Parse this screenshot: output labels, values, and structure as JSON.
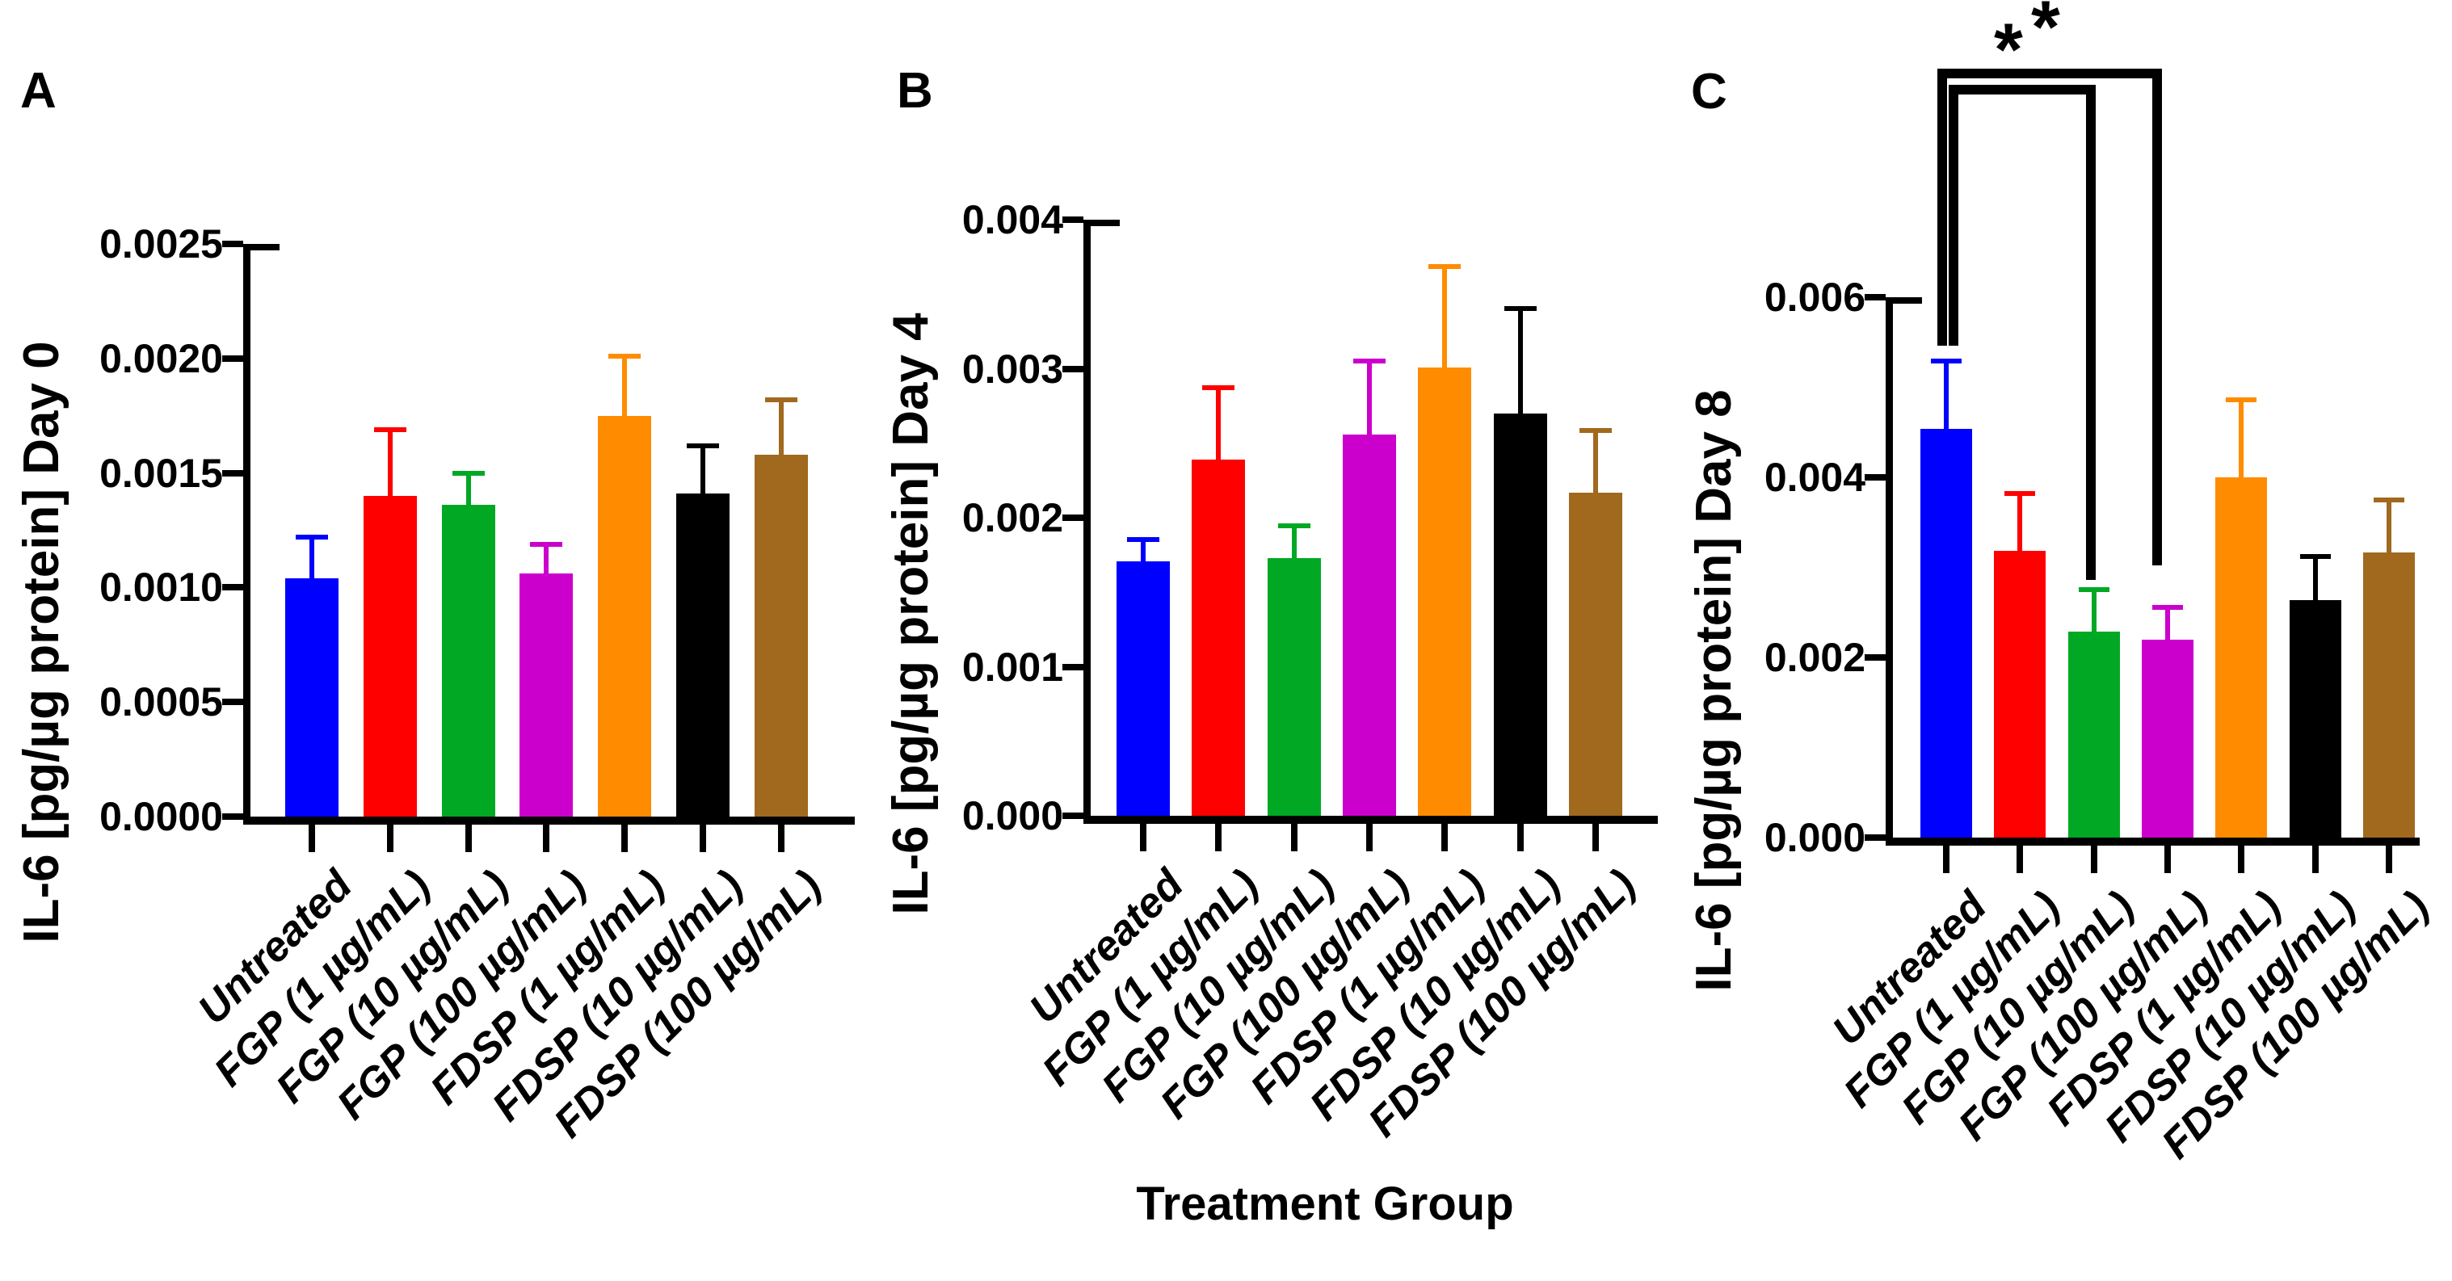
{
  "xlabel": "Treatment Group",
  "background_color": "#FFFFFF",
  "axis_color": "#000000",
  "bar_colors": [
    "#0000FF",
    "#FF0000",
    "#00A823",
    "#CC00CC",
    "#FF8C00",
    "#000000",
    "#A0691E"
  ],
  "chart_data": [
    {
      "type": "bar",
      "panel_letter": "A",
      "ylabel": "IL-6 [pg/µg protein] Day 0",
      "xlabel": "Treatment Group",
      "categories": [
        "Untreated",
        "FGP (1 µg/mL)",
        "FGP (10 µg/mL)",
        "FGP (100 µg/mL)",
        "FDSP (1 µg/mL)",
        "FDSP (10 µg/mL)",
        "FDSP (100 µg/mL)"
      ],
      "values": [
        0.00104,
        0.0014,
        0.00136,
        0.00106,
        0.00175,
        0.00141,
        0.00158
      ],
      "errors_plus": [
        0.00019,
        0.0003,
        0.00015,
        0.00014,
        0.00027,
        0.00022,
        0.00025
      ],
      "bar_colors": [
        "#0000FF",
        "#FF0000",
        "#00A823",
        "#CC00CC",
        "#FF8C00",
        "#000000",
        "#A0691E"
      ],
      "ylim": [
        0,
        0.0025
      ],
      "ytick_labels": [
        "0.0000",
        "0.0005",
        "0.0010",
        "0.0015",
        "0.0020",
        "0.0025"
      ],
      "grid": "off",
      "legend": "none",
      "error_bar_style": "upper-only, colored same as bar"
    },
    {
      "type": "bar",
      "panel_letter": "B",
      "ylabel": "IL-6 [pg/µg protein] Day 4",
      "xlabel": "Treatment Group",
      "categories": [
        "Untreated",
        "FGP (1 µg/mL)",
        "FGP (10 µg/mL)",
        "FGP (100 µg/mL)",
        "FDSP (1 µg/mL)",
        "FDSP (10 µg/mL)",
        "FDSP (100 µg/mL)"
      ],
      "values": [
        0.00171,
        0.00239,
        0.00173,
        0.00256,
        0.00301,
        0.0027,
        0.00217
      ],
      "errors_plus": [
        0.00016,
        0.0005,
        0.00023,
        0.00051,
        0.00069,
        0.00072,
        0.00043
      ],
      "bar_colors": [
        "#0000FF",
        "#FF0000",
        "#00A823",
        "#CC00CC",
        "#FF8C00",
        "#000000",
        "#A0691E"
      ],
      "ylim": [
        0,
        0.004
      ],
      "ytick_labels": [
        "0.000",
        "0.001",
        "0.002",
        "0.003",
        "0.004"
      ],
      "grid": "off",
      "legend": "none",
      "error_bar_style": "upper-only, colored same as bar"
    },
    {
      "type": "bar",
      "panel_letter": "C",
      "ylabel": "IL-6 [pg/µg protein] Day 8",
      "xlabel": "Treatment Group",
      "categories": [
        "Untreated",
        "FGP (1 µg/mL)",
        "FGP (10 µg/mL)",
        "FGP (100 µg/mL)",
        "FDSP (1 µg/mL)",
        "FDSP (10 µg/mL)",
        "FDSP (100 µg/mL)"
      ],
      "values": [
        0.00454,
        0.00318,
        0.00229,
        0.0022,
        0.004,
        0.00264,
        0.00317
      ],
      "errors_plus": [
        0.00078,
        0.00067,
        0.00049,
        0.00038,
        0.00089,
        0.00051,
        0.00061
      ],
      "bar_colors": [
        "#0000FF",
        "#FF0000",
        "#00A823",
        "#CC00CC",
        "#FF8C00",
        "#000000",
        "#A0691E"
      ],
      "ylim": [
        0,
        0.006
      ],
      "ytick_labels": [
        "0.000",
        "0.002",
        "0.004",
        "0.006"
      ],
      "grid": "off",
      "legend": "none",
      "error_bar_style": "upper-only, colored same as bar",
      "significance": [
        {
          "label": "*",
          "from": "Untreated",
          "to": "FGP (10 µg/mL)"
        },
        {
          "label": "*",
          "from": "Untreated",
          "to": "FGP (100 µg/mL)"
        }
      ]
    }
  ]
}
